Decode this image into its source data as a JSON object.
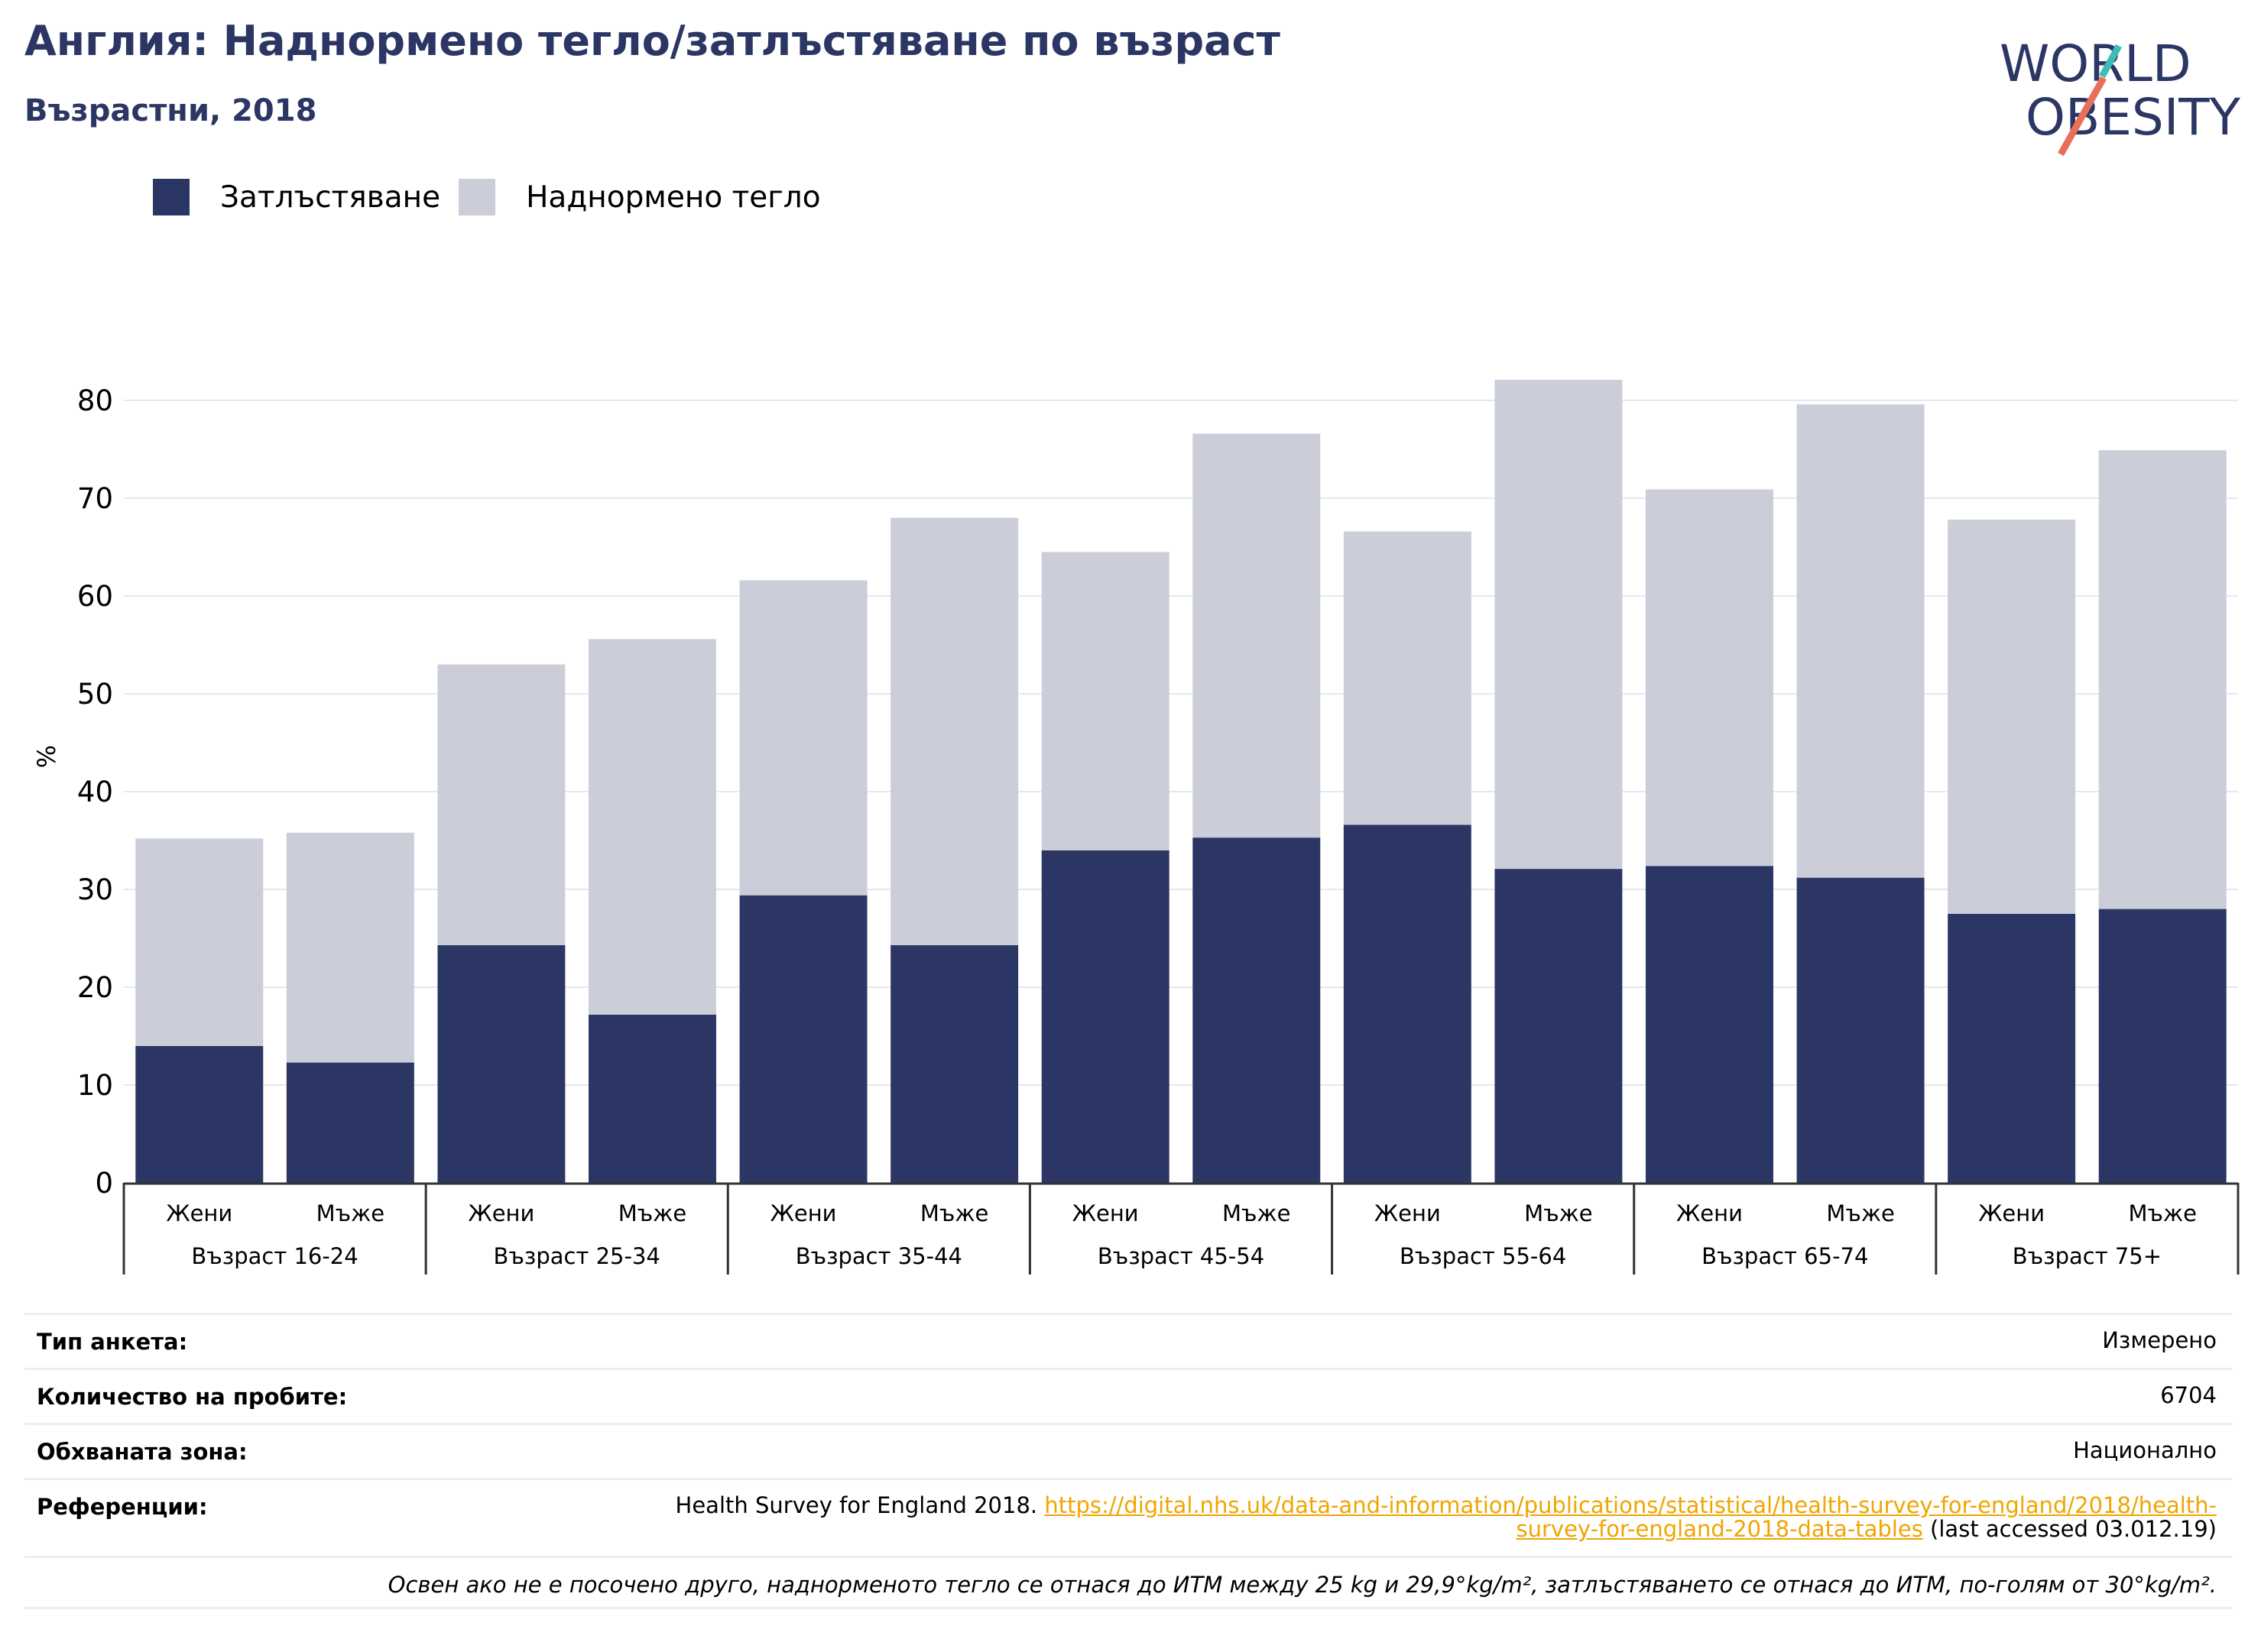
{
  "title": "Англия: Наднормено тегло/затлъстяване по възраст",
  "subtitle": "Възрастни, 2018",
  "logo": {
    "line1": "WORLD",
    "line2": "OBESITY"
  },
  "colors": {
    "obesity": "#2b3664",
    "overweight": "#cbcdd9",
    "title": "#2b3664",
    "link": "#f0a500",
    "logo_teal": "#3dbdb3",
    "logo_red": "#e8705a"
  },
  "legend": [
    {
      "label": "Затлъстяване",
      "color": "#2b3664"
    },
    {
      "label": "Наднормено тегло",
      "color": "#cbcdd9"
    }
  ],
  "chart_data": {
    "type": "bar",
    "stacked": true,
    "ylabel": "%",
    "ylim": [
      0,
      85
    ],
    "yticks": [
      0,
      10,
      20,
      30,
      40,
      50,
      60,
      70,
      80
    ],
    "grid": true,
    "legend_position": "top-left",
    "groups": [
      "Възраст 16-24",
      "Възраст 25-34",
      "Възраст 35-44",
      "Възраст 45-54",
      "Възраст 55-64",
      "Възраст 65-74",
      "Възраст 75+"
    ],
    "subcategories": [
      "Жени",
      "Мъже"
    ],
    "series": [
      {
        "name": "Затлъстяване",
        "values": [
          14.0,
          12.3,
          24.3,
          17.2,
          29.4,
          24.3,
          34.0,
          35.3,
          36.6,
          32.1,
          32.4,
          31.2,
          27.5,
          28.0
        ]
      },
      {
        "name": "Наднормено тегло",
        "values": [
          21.2,
          23.5,
          28.7,
          38.4,
          32.2,
          43.7,
          30.5,
          41.3,
          30.0,
          50.0,
          38.5,
          48.4,
          40.3,
          46.9
        ]
      }
    ]
  },
  "info": {
    "rows": [
      {
        "key": "Тип анкета:",
        "value": "Измерено"
      },
      {
        "key": "Количество на пробите:",
        "value": "6704"
      },
      {
        "key": "Обхваната зона:",
        "value": "Национално"
      }
    ],
    "reference": {
      "key": "Референции:",
      "prefix": "Health Survey for England 2018. ",
      "link_line1": "https://digital.nhs.uk/data-and-information/publications/statistical/health-survey-for-england/2018/health-",
      "link_line2": "survey-for-england-2018-data-tables",
      "suffix": " (last accessed 03.012.19)"
    },
    "note": "Освен ако не е посочено друго, наднорменото тегло се отнася до ИТМ между 25 kg и 29,9°kg/m², затлъстяването се отнася до ИТМ, по-голям от 30°kg/m²."
  }
}
